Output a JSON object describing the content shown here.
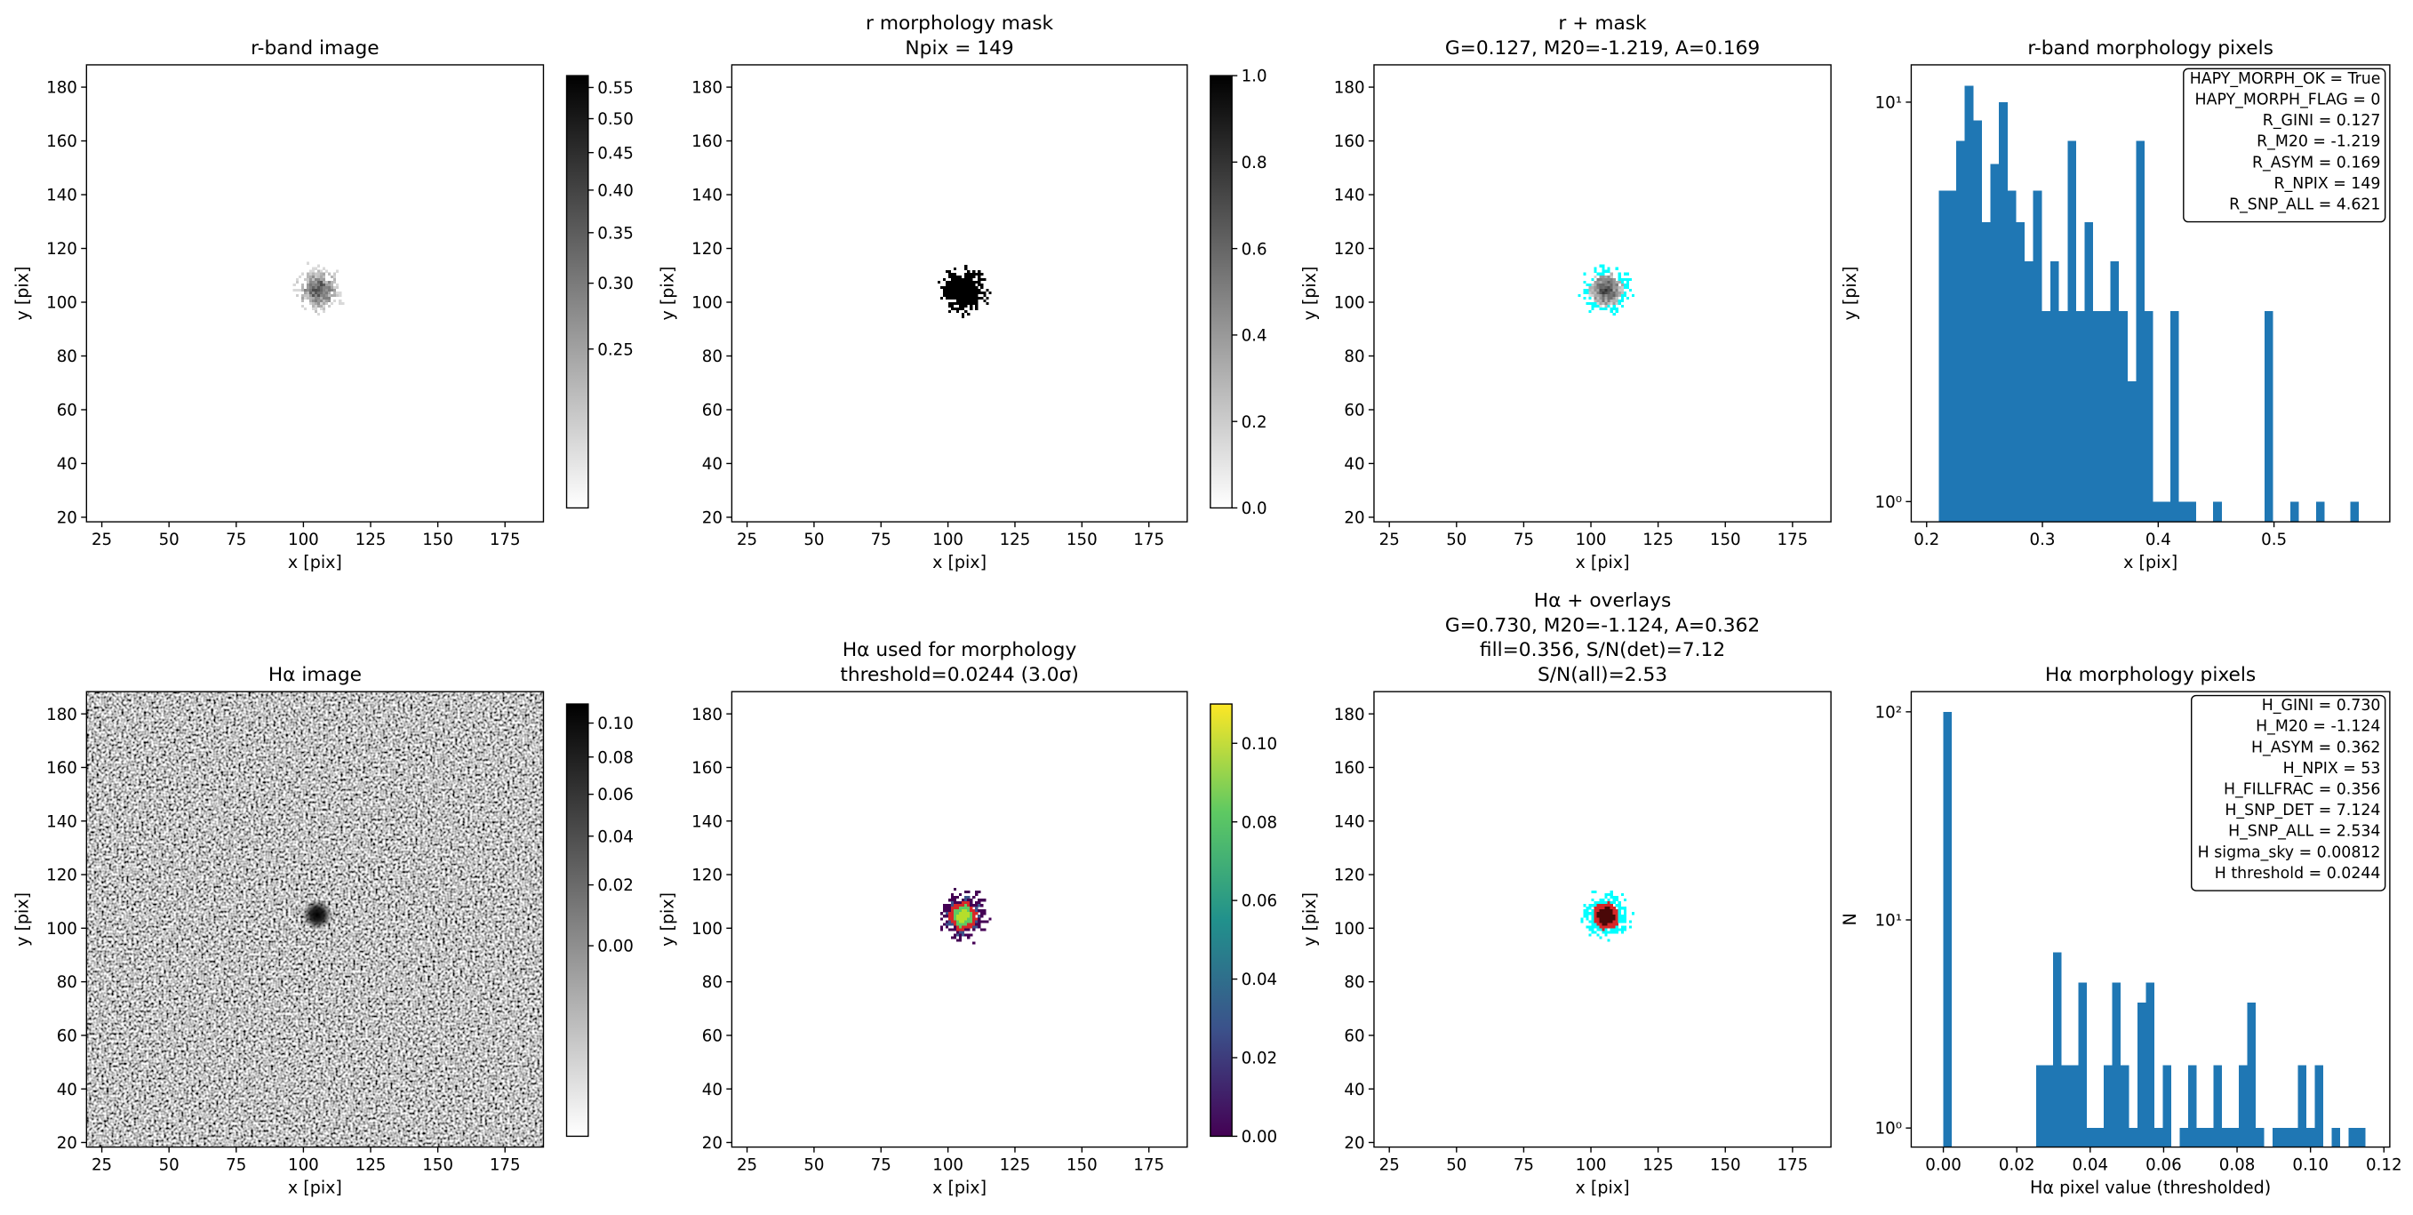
{
  "chart_data": [
    {
      "type": "image",
      "title": [
        "r-band image"
      ],
      "xlabel": "x [pix]",
      "ylabel": "y [pix]",
      "xlim": [
        19.3,
        189.3
      ],
      "ylim": [
        18.3,
        188.3
      ],
      "xticks": [
        25,
        50,
        75,
        100,
        125,
        150,
        175
      ],
      "yticks": [
        20,
        40,
        60,
        80,
        100,
        120,
        140,
        160,
        180
      ],
      "colorbar": {
        "colormap": "gray_r",
        "scale": "sqrt",
        "clim": [
          0.2,
          0.57
        ],
        "ticks": [
          0.25,
          {
            "value": 0.3,
            "label": "0.30"
          },
          0.35,
          {
            "value": 0.4,
            "label": "0.40"
          },
          0.45,
          {
            "value": 0.5,
            "label": "0.50"
          },
          0.55
        ]
      }
    },
    {
      "type": "image",
      "title": [
        "r morphology mask",
        "Npix = 149"
      ],
      "xlabel": "x [pix]",
      "ylabel": "y [pix]",
      "xlim": [
        19.3,
        189.3
      ],
      "ylim": [
        18.3,
        188.3
      ],
      "xticks": [
        25,
        50,
        75,
        100,
        125,
        150,
        175
      ],
      "yticks": [
        20,
        40,
        60,
        80,
        100,
        120,
        140,
        160,
        180
      ],
      "colorbar": {
        "colormap": "gray_r",
        "scale": "linear",
        "clim": [
          0,
          1
        ],
        "ticks": [
          {
            "value": 0,
            "label": "0.0"
          },
          0.2,
          0.4,
          0.6,
          0.8,
          {
            "value": 1,
            "label": "1.0"
          }
        ]
      }
    },
    {
      "type": "image",
      "title": [
        "r + mask",
        "G=0.127, M20=-1.219, A=0.169"
      ],
      "xlabel": "x [pix]",
      "ylabel": "y [pix]",
      "xlim": [
        19.3,
        189.3
      ],
      "ylim": [
        18.3,
        188.3
      ],
      "xticks": [
        25,
        50,
        75,
        100,
        125,
        150,
        175
      ],
      "yticks": [
        20,
        40,
        60,
        80,
        100,
        120,
        140,
        160,
        180
      ]
    },
    {
      "type": "histogram",
      "title": [
        "r-band morphology pixels"
      ],
      "xlabel": "x [pix]",
      "ylabel": "y [pix]",
      "color": "#1f77b4",
      "xlim": [
        0.1867,
        0.6
      ],
      "ylim": [
        0.89,
        12.4
      ],
      "yscale": "log",
      "xticks": [
        0.2,
        0.3,
        0.4,
        0.5
      ],
      "yticks": [
        {
          "value": 1,
          "label": "10⁰"
        },
        {
          "value": 10,
          "label": "10¹"
        }
      ],
      "bins": [
        0.2107,
        0.2181,
        0.2255,
        0.2329,
        0.2403,
        0.2477,
        0.2551,
        0.2625,
        0.2699,
        0.2773,
        0.2847,
        0.2921,
        0.2995,
        0.3069,
        0.3143,
        0.3217,
        0.3291,
        0.3365,
        0.3439,
        0.3513,
        0.3587,
        0.3661,
        0.3735,
        0.3809,
        0.3883,
        0.3957,
        0.4031,
        0.4105,
        0.4179,
        0.4253,
        0.4327,
        0.4401,
        0.4475,
        0.4549,
        0.4623,
        0.4697,
        0.4771,
        0.4845,
        0.4919,
        0.4993,
        0.5067,
        0.5141,
        0.5215,
        0.5289,
        0.5363,
        0.5437,
        0.5511,
        0.5585,
        0.5659,
        0.5733,
        0.5807
      ],
      "values": [
        6,
        6,
        8,
        11,
        9,
        5,
        7,
        10,
        6,
        5,
        4,
        6,
        3,
        4,
        3,
        8,
        3,
        5,
        3,
        3,
        4,
        3,
        2,
        8,
        3,
        1,
        1,
        3,
        1,
        1,
        0,
        0,
        1,
        0,
        0,
        0,
        0,
        0,
        3,
        0,
        0,
        1,
        0,
        0,
        1,
        0,
        0,
        0,
        1,
        0
      ],
      "annotation": [
        "HAPY_MORPH_OK = True",
        "HAPY_MORPH_FLAG = 0",
        "R_GINI = 0.127",
        "R_M20 = -1.219",
        "R_ASYM = 0.169",
        "R_NPIX = 149",
        "R_SNP_ALL = 4.621"
      ]
    },
    {
      "type": "image",
      "title": [
        "Hα image"
      ],
      "xlabel": "x [pix]",
      "ylabel": "y [pix]",
      "xlim": [
        19.3,
        189.3
      ],
      "ylim": [
        18.3,
        188.3
      ],
      "xticks": [
        25,
        50,
        75,
        100,
        125,
        150,
        175
      ],
      "yticks": [
        20,
        40,
        60,
        80,
        100,
        120,
        140,
        160,
        180
      ],
      "colorbar": {
        "colormap": "gray_r",
        "scale": "sqrt",
        "clim": [
          -0.027,
          0.112
        ],
        "ticks": [
          {
            "value": 0,
            "label": "0.00"
          },
          0.02,
          0.04,
          0.06,
          0.08,
          {
            "value": 0.1,
            "label": "0.10"
          }
        ]
      }
    },
    {
      "type": "image",
      "title": [
        "Hα used for morphology",
        "threshold=0.0244 (3.0σ)"
      ],
      "xlabel": "x [pix]",
      "ylabel": "y [pix]",
      "xlim": [
        19.3,
        189.3
      ],
      "ylim": [
        18.3,
        188.3
      ],
      "xticks": [
        25,
        50,
        75,
        100,
        125,
        150,
        175
      ],
      "yticks": [
        20,
        40,
        60,
        80,
        100,
        120,
        140,
        160,
        180
      ],
      "colorbar": {
        "colormap": "viridis",
        "scale": "linear",
        "clim": [
          0,
          0.11
        ],
        "ticks": [
          {
            "value": 0,
            "label": "0.00"
          },
          0.02,
          0.04,
          0.06,
          0.08,
          {
            "value": 0.1,
            "label": "0.10"
          }
        ]
      }
    },
    {
      "type": "image",
      "title": [
        "Hα + overlays",
        "G=0.730, M20=-1.124, A=0.362",
        "fill=0.356, S/N(det)=7.12",
        "S/N(all)=2.53"
      ],
      "xlabel": "x [pix]",
      "ylabel": "y [pix]",
      "xlim": [
        19.3,
        189.3
      ],
      "ylim": [
        18.3,
        188.3
      ],
      "xticks": [
        25,
        50,
        75,
        100,
        125,
        150,
        175
      ],
      "yticks": [
        20,
        40,
        60,
        80,
        100,
        120,
        140,
        160,
        180
      ]
    },
    {
      "type": "histogram",
      "title": [
        "Hα morphology pixels"
      ],
      "xlabel": "Hα pixel value (thresholded)",
      "ylabel": "N",
      "color": "#1f77b4",
      "xlim": [
        -0.00875,
        0.1216
      ],
      "ylim": [
        0.81,
        125
      ],
      "yscale": "log",
      "xticks": [
        {
          "value": 0,
          "label": "0.00"
        },
        0.02,
        0.04,
        0.06,
        0.08,
        {
          "value": 0.1,
          "label": "0.10"
        },
        0.12
      ],
      "yticks": [
        {
          "value": 1,
          "label": "10⁰"
        },
        {
          "value": 10,
          "label": "10¹"
        },
        {
          "value": 100,
          "label": "10²"
        }
      ],
      "bins": [
        0,
        0.0023,
        0.0046,
        0.0069,
        0.0092,
        0.0115,
        0.0138,
        0.0161,
        0.0184,
        0.0207,
        0.023,
        0.0253,
        0.0276,
        0.0299,
        0.0322,
        0.0345,
        0.0368,
        0.0391,
        0.0414,
        0.0437,
        0.046,
        0.0483,
        0.0506,
        0.0529,
        0.0552,
        0.0575,
        0.0598,
        0.0621,
        0.0644,
        0.0667,
        0.069,
        0.0713,
        0.0736,
        0.0759,
        0.0782,
        0.0805,
        0.0828,
        0.0851,
        0.0874,
        0.0897,
        0.092,
        0.0943,
        0.0966,
        0.0989,
        0.1012,
        0.1035,
        0.1058,
        0.1081,
        0.1104,
        0.1127,
        0.115
      ],
      "values": [
        100,
        0,
        0,
        0,
        0,
        0,
        0,
        0,
        0,
        0,
        0,
        2,
        2,
        7,
        2,
        2,
        5,
        1,
        1,
        2,
        5,
        2,
        1,
        4,
        5,
        1,
        2,
        0,
        1,
        2,
        1,
        1,
        2,
        1,
        1,
        2,
        4,
        1,
        0,
        1,
        1,
        1,
        2,
        1,
        2,
        0,
        1,
        0,
        1,
        1
      ],
      "annotation": [
        "H_GINI = 0.730",
        "H_M20 = -1.124",
        "H_ASYM = 0.362",
        "H_NPIX = 53",
        "H_FILLFRAC = 0.356",
        "H_SNP_DET = 7.124",
        "H_SNP_ALL = 2.534",
        "H sigma_sky = 0.00812",
        "H threshold = 0.0244"
      ]
    }
  ]
}
